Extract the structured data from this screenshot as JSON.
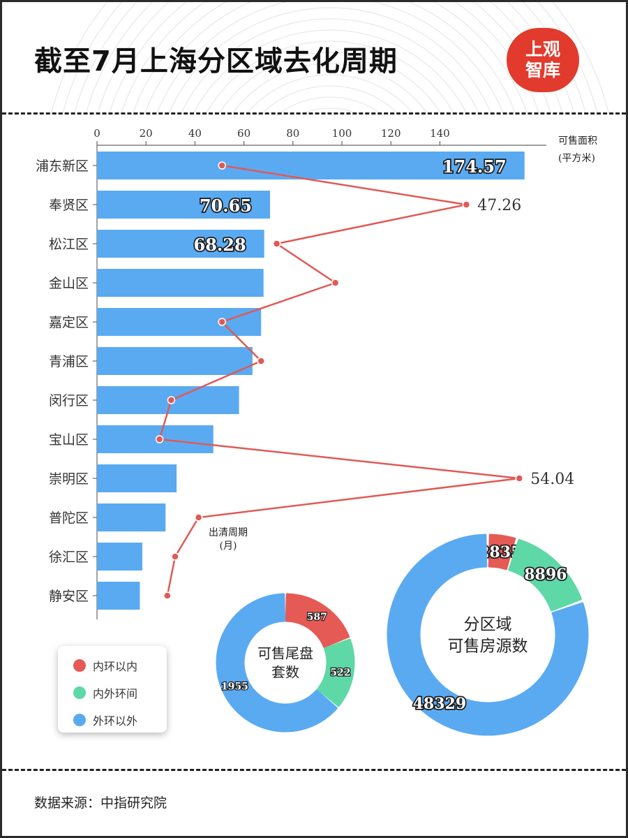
{
  "title": "截至7月上海分区域去化周期",
  "logo": {
    "line1": "上观",
    "line2": "智库",
    "color": "#e23a2c"
  },
  "source": "数据来源：中指研究院",
  "colors": {
    "bar": "#5aaaf2",
    "line": "#e05a55",
    "inner": "#e65a55",
    "middle": "#5ed8a6",
    "outer": "#5aaaf2"
  },
  "legend": [
    {
      "label": "内环以内",
      "color": "#e65a55"
    },
    {
      "label": "内外环间",
      "color": "#5ed8a6"
    },
    {
      "label": "外环以外",
      "color": "#5aaaf2"
    }
  ],
  "chart_data": [
    {
      "type": "bar",
      "orientation": "horizontal",
      "categories": [
        "浦东新区",
        "奉贤区",
        "松江区",
        "金山区",
        "嘉定区",
        "青浦区",
        "闵行区",
        "宝山区",
        "崇明区",
        "普陀区",
        "徐汇区",
        "静安区"
      ],
      "values": [
        174.57,
        70.65,
        68.28,
        68.0,
        67.0,
        63.5,
        58.0,
        47.5,
        32.5,
        28.0,
        18.5,
        17.5
      ],
      "value_labels": [
        "174.57",
        "70.65",
        "68.28",
        null,
        null,
        null,
        null,
        null,
        null,
        null,
        null,
        null
      ],
      "unit_label": "可售面积",
      "unit_sub": "(平方米)",
      "xticks": [
        0,
        20,
        40,
        60,
        80,
        100,
        120,
        140
      ],
      "xlim": [
        0,
        175
      ]
    },
    {
      "type": "line",
      "categories": [
        "浦东新区",
        "奉贤区",
        "松江区",
        "金山区",
        "嘉定区",
        "青浦区",
        "闵行区",
        "宝山区",
        "崇明区",
        "普陀区",
        "徐汇区",
        "静安区"
      ],
      "values": [
        16,
        47.26,
        23,
        30.5,
        16,
        21,
        9.5,
        8,
        54.04,
        13,
        10,
        9
      ],
      "value_labels": [
        null,
        "47.26",
        null,
        null,
        null,
        null,
        null,
        null,
        "54.04",
        null,
        null,
        null
      ],
      "label": "出清周期",
      "label_sub": "(月)"
    },
    {
      "type": "pie",
      "donut": true,
      "center_text": [
        "可售尾盘",
        "套数"
      ],
      "values": [
        587,
        522,
        1955
      ],
      "labels": [
        "587",
        "522",
        "1955"
      ],
      "categories": [
        "内环以内",
        "内外环间",
        "外环以外"
      ]
    },
    {
      "type": "pie",
      "donut": true,
      "center_text": [
        "分区域",
        "可售房源数"
      ],
      "values": [
        2835,
        8896,
        48329
      ],
      "labels": [
        "2835",
        "8896",
        "48329"
      ],
      "categories": [
        "内环以内",
        "内外环间",
        "外环以外"
      ]
    }
  ]
}
